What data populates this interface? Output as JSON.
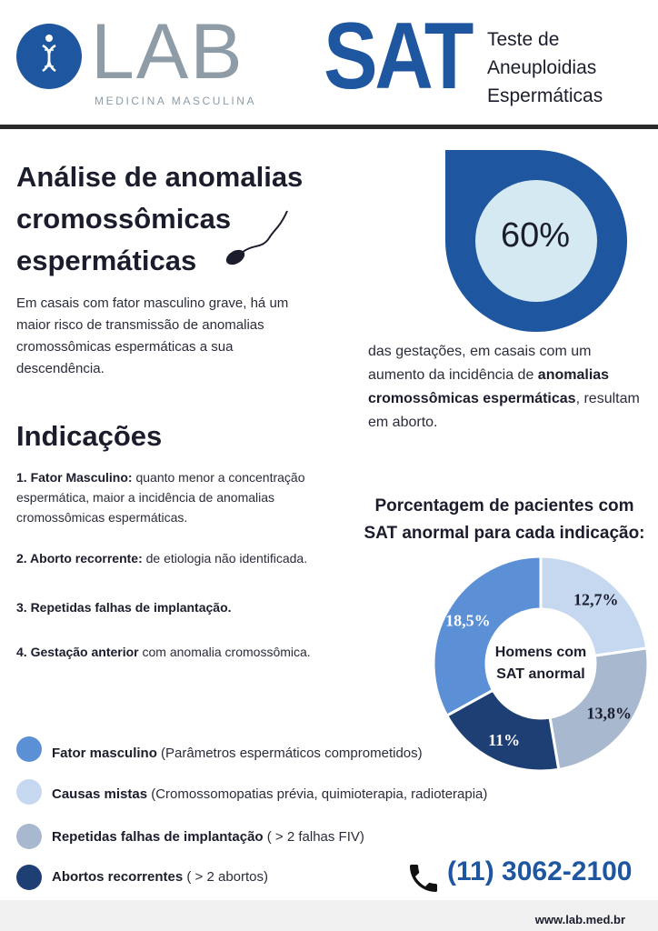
{
  "brand": {
    "name": "LAB",
    "tagline": "MEDICINA MASCULINA",
    "color": "#1e56a0"
  },
  "header": {
    "acronym": "SAT",
    "title_lines": [
      "Teste de",
      "Aneuploidias",
      "Espermáticas"
    ]
  },
  "intro": {
    "title_lines": [
      "Análise de anomalias",
      "cromossômicas",
      "espermáticas"
    ],
    "text": "Em casais com fator masculino grave, há um maior risco de transmissão de anomalias cromossômicas espermáticas a sua descendência."
  },
  "statistic": {
    "value": "60%",
    "text_before": "das gestações, em casais com um aumento da incidência de ",
    "text_bold": "anomalias cromossômicas espermáticas",
    "text_after": ", resultam em aborto."
  },
  "indications": {
    "title": "Indicações",
    "items": [
      {
        "bold": "1. Fator Masculino:",
        "text": " quanto menor a concentração espermática, maior a incidência de anomalias cromossômicas espermáticas."
      },
      {
        "bold": "2. Aborto recorrente:",
        "text": " de etiologia não identificada."
      },
      {
        "bold": "3. Repetidas falhas de implantação.",
        "text": ""
      },
      {
        "bold": "4. Gestação anterior",
        "text": " com anomalia cromossômica."
      }
    ]
  },
  "chart_data": {
    "type": "pie",
    "title": "Porcentagem de pacientes com SAT anormal para cada indicação:",
    "center_label": "Homens com SAT anormal",
    "series": [
      {
        "name": "Fator masculino",
        "value": 18.5,
        "label": "18,5%",
        "color": "#5b8fd6"
      },
      {
        "name": "Causas mistas",
        "value": 12.7,
        "label": "12,7%",
        "color": "#c6d8f0"
      },
      {
        "name": "Repetidas falhas de implantação",
        "value": 13.8,
        "label": "13,8%",
        "color": "#a8b9cf"
      },
      {
        "name": "Abortos recorrentes",
        "value": 11,
        "label": "11%",
        "color": "#1e3f73"
      }
    ]
  },
  "legend": [
    {
      "bold": "Fator masculino",
      "text": " (Parâmetros espermáticos comprometidos)"
    },
    {
      "bold": "Causas mistas",
      "text": " (Cromossomopatias prévia, quimioterapia, radioterapia)"
    },
    {
      "bold": "Repetidas falhas de implantação",
      "text": "  ( > 2 falhas FIV)"
    },
    {
      "bold": "Abortos recorrentes",
      "text": "  ( > 2 abortos)"
    }
  ],
  "contact": {
    "phone": "(11) 3062-2100",
    "website": "www.lab.med.br"
  }
}
